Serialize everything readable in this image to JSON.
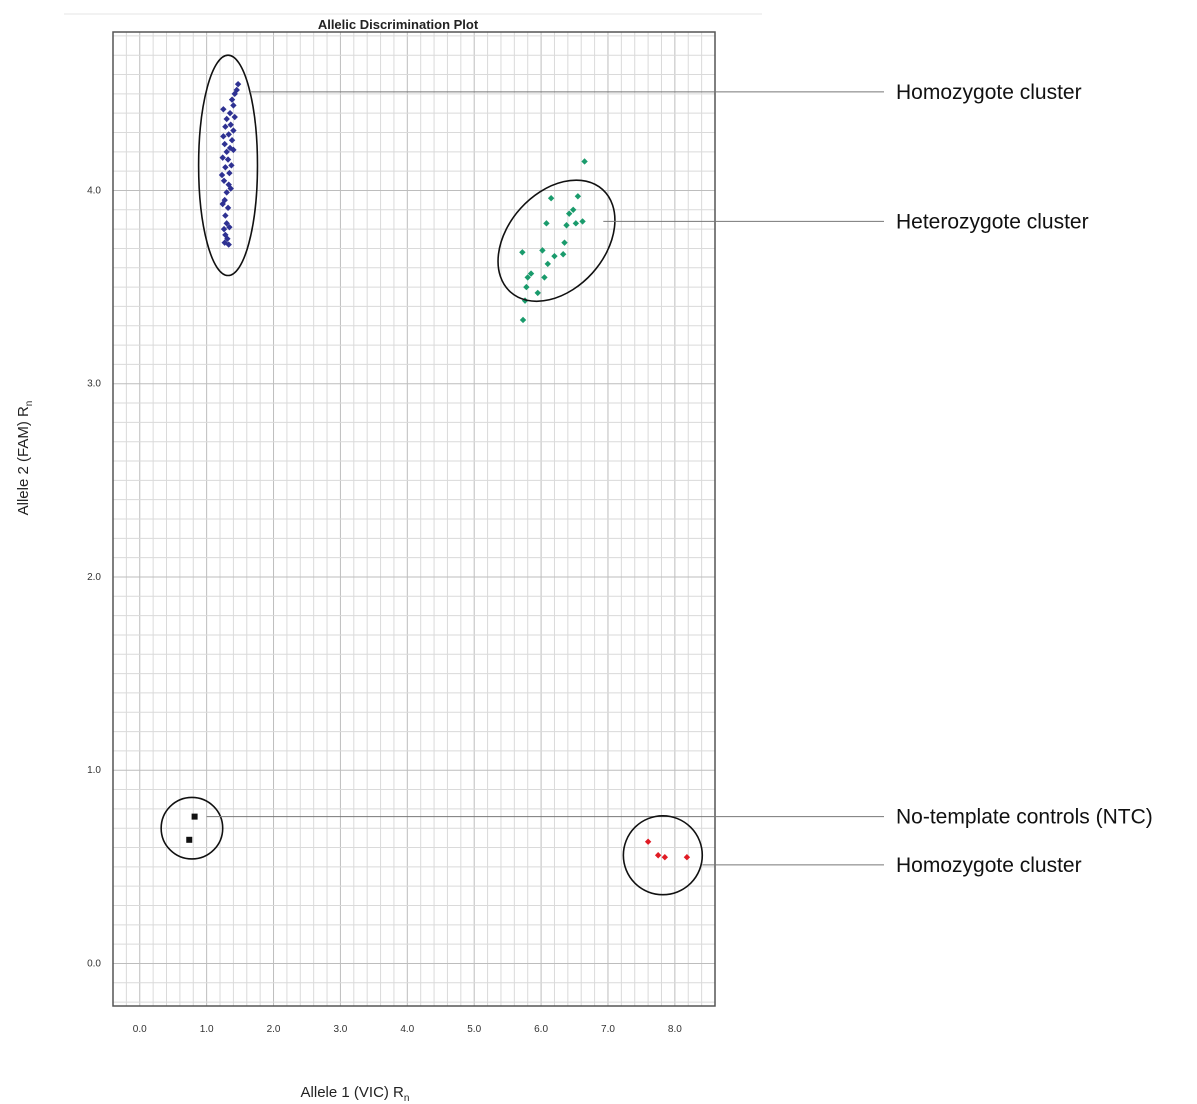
{
  "chart_data": {
    "type": "scatter",
    "title": "Allelic Discrimination Plot",
    "xlabel": "Allele 1 (VIC) R",
    "xlabel_sub": "n",
    "ylabel": "Allele 2 (FAM) R",
    "ylabel_sub": "n",
    "xlim": [
      -0.4,
      8.6
    ],
    "ylim": [
      -0.22,
      4.82
    ],
    "x_ticks": [
      "0.0",
      "1.0",
      "2.0",
      "3.0",
      "4.0",
      "5.0",
      "6.0",
      "7.0",
      "8.0"
    ],
    "y_ticks": [
      "0.0",
      "1.0",
      "2.0",
      "3.0",
      "4.0"
    ],
    "grid": true,
    "series": [
      {
        "color": "#2e3192",
        "marker": "diamond",
        "points": [
          [
            1.47,
            4.55
          ],
          [
            1.45,
            4.52
          ],
          [
            1.42,
            4.5
          ],
          [
            1.38,
            4.47
          ],
          [
            1.25,
            4.42
          ],
          [
            1.4,
            4.44
          ],
          [
            1.35,
            4.4
          ],
          [
            1.3,
            4.37
          ],
          [
            1.42,
            4.38
          ],
          [
            1.28,
            4.33
          ],
          [
            1.36,
            4.34
          ],
          [
            1.4,
            4.31
          ],
          [
            1.25,
            4.28
          ],
          [
            1.33,
            4.29
          ],
          [
            1.38,
            4.26
          ],
          [
            1.27,
            4.24
          ],
          [
            1.35,
            4.22
          ],
          [
            1.3,
            4.2
          ],
          [
            1.4,
            4.21
          ],
          [
            1.24,
            4.17
          ],
          [
            1.32,
            4.16
          ],
          [
            1.37,
            4.13
          ],
          [
            1.28,
            4.12
          ],
          [
            1.34,
            4.09
          ],
          [
            1.26,
            4.05
          ],
          [
            1.33,
            4.03
          ],
          [
            1.3,
            3.99
          ],
          [
            1.27,
            3.95
          ],
          [
            1.32,
            3.91
          ],
          [
            1.28,
            3.87
          ],
          [
            1.3,
            3.83
          ],
          [
            1.26,
            3.8
          ],
          [
            1.34,
            3.81
          ],
          [
            1.28,
            3.77
          ],
          [
            1.31,
            3.75
          ],
          [
            1.27,
            3.73
          ],
          [
            1.33,
            3.72
          ],
          [
            1.24,
            3.93
          ],
          [
            1.36,
            4.01
          ],
          [
            1.23,
            4.08
          ]
        ]
      },
      {
        "color": "#1a9b6c",
        "marker": "diamond",
        "points": [
          [
            6.65,
            4.15
          ],
          [
            6.15,
            3.96
          ],
          [
            6.55,
            3.97
          ],
          [
            6.48,
            3.9
          ],
          [
            6.42,
            3.88
          ],
          [
            6.62,
            3.84
          ],
          [
            6.52,
            3.83
          ],
          [
            6.38,
            3.82
          ],
          [
            6.08,
            3.83
          ],
          [
            6.35,
            3.73
          ],
          [
            5.72,
            3.68
          ],
          [
            6.02,
            3.69
          ],
          [
            6.2,
            3.66
          ],
          [
            6.33,
            3.67
          ],
          [
            6.1,
            3.62
          ],
          [
            5.85,
            3.57
          ],
          [
            5.8,
            3.55
          ],
          [
            6.05,
            3.55
          ],
          [
            5.78,
            3.5
          ],
          [
            5.95,
            3.47
          ],
          [
            5.76,
            3.43
          ],
          [
            5.73,
            3.33
          ]
        ]
      },
      {
        "color": "#111111",
        "marker": "square",
        "points": [
          [
            0.82,
            0.76
          ],
          [
            0.74,
            0.64
          ]
        ]
      },
      {
        "color": "#e01b24",
        "marker": "diamond",
        "points": [
          [
            7.6,
            0.63
          ],
          [
            7.75,
            0.56
          ],
          [
            7.85,
            0.55
          ],
          [
            8.18,
            0.55
          ]
        ]
      }
    ],
    "annotations": [
      {
        "label": "Homozygote cluster",
        "shape": "ellipse",
        "cx": 1.32,
        "cy": 4.13,
        "rx_data": 0.44,
        "ry_data": 0.57,
        "rotate": 0,
        "anchor": [
          1.65,
          4.51
        ]
      },
      {
        "label": "Heterozygote cluster",
        "shape": "ellipse",
        "cx": 6.23,
        "cy": 3.74,
        "rx_data": 1.03,
        "ry_data": 0.25,
        "rotate": -48,
        "anchor": [
          6.93,
          3.84
        ]
      },
      {
        "label": "No-template controls (NTC)",
        "shape": "circle",
        "cx": 0.78,
        "cy": 0.7,
        "r_data": 0.46,
        "rotate": 0,
        "anchor": [
          1.0,
          0.76
        ]
      },
      {
        "label": "Homozygote cluster",
        "shape": "circle",
        "cx": 7.82,
        "cy": 0.56,
        "r_data": 0.59,
        "rotate": 0,
        "anchor": [
          8.41,
          0.51
        ]
      }
    ]
  }
}
